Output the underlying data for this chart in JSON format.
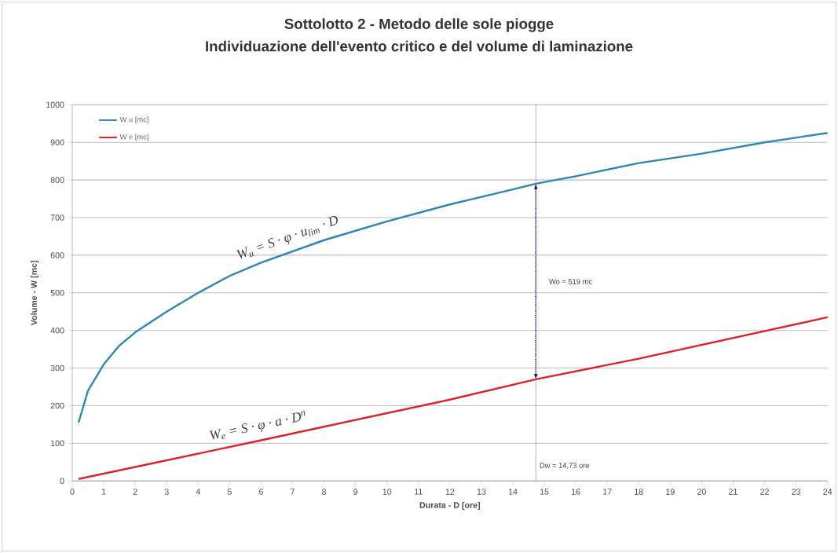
{
  "chart_data": {
    "type": "line",
    "title": "Sottolotto 2 - Metodo delle sole piogge",
    "subtitle": "Individuazione dell'evento critico e del volume di laminazione",
    "xlabel": "Durata  - D [ore]",
    "ylabel": "Volume - W [mc]",
    "series": [
      {
        "name": "W u [mc]",
        "color": "#2e86b8",
        "x": [
          0.2,
          0.5,
          1,
          1.5,
          2,
          3,
          4,
          5,
          6,
          7,
          8,
          9,
          10,
          12,
          14,
          14.73,
          16,
          18,
          20,
          22,
          24
        ],
        "values": [
          155,
          240,
          310,
          360,
          395,
          450,
          500,
          545,
          580,
          610,
          640,
          665,
          690,
          735,
          775,
          790,
          810,
          845,
          870,
          900,
          925
        ]
      },
      {
        "name": "W e [mc]",
        "color": "#e0202a",
        "x": [
          0.2,
          6,
          12,
          14.73,
          18,
          24
        ],
        "values": [
          5,
          108,
          216,
          270,
          325,
          435
        ]
      }
    ],
    "xlim": [
      0,
      24
    ],
    "xticks": [
      0,
      1,
      2,
      3,
      4,
      5,
      6,
      7,
      8,
      9,
      10,
      11,
      12,
      13,
      14,
      15,
      16,
      17,
      18,
      19,
      20,
      21,
      22,
      23,
      24
    ],
    "ylim": [
      0,
      1000
    ],
    "yticks": [
      0,
      100,
      200,
      300,
      400,
      500,
      600,
      700,
      800,
      900,
      1000
    ],
    "grid": "y",
    "legend": "top left",
    "marker": "none",
    "line_style": "solid",
    "ref_lines": [
      {
        "axis": "x",
        "value": 14.73,
        "label": "Dw = 14,73 ore",
        "color": "#a0a0a0"
      }
    ],
    "annotations": [
      "W$_{u}$ = S · φ · u$_{lim}$ · D",
      "W$_{e}$ = S · φ · a · D$^{n}$",
      {
        "text": "Wo = 519 mc",
        "x": 14.73,
        "y": 530
      }
    ]
  }
}
